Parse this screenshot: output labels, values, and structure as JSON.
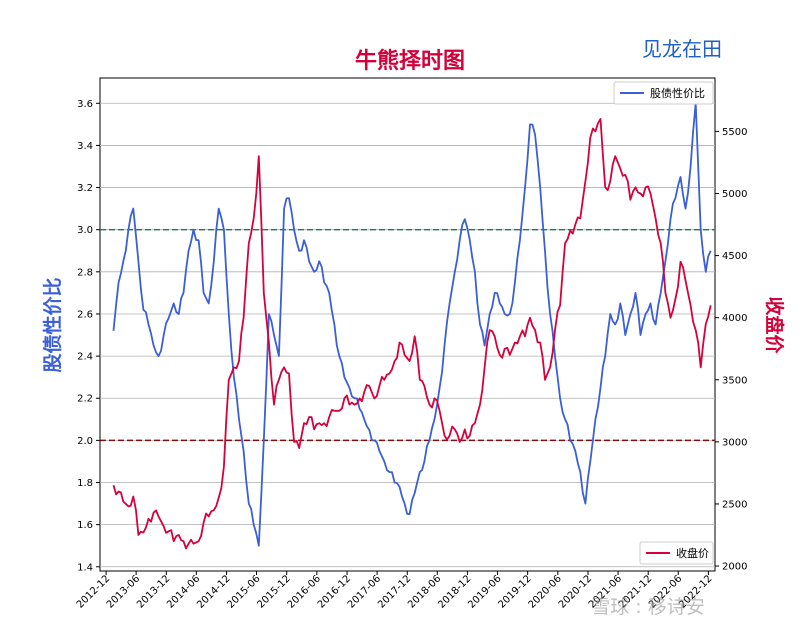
{
  "chart_data": {
    "type": "line",
    "title": "牛熊择时图",
    "brand": "见龙在田",
    "watermark": "雪球 : 移诗安",
    "xlabel": "",
    "ylabel": "股债性价比",
    "y2label": "收盘价",
    "ylim": [
      1.38,
      3.72
    ],
    "y2lim": [
      1960,
      5930
    ],
    "yticks": [
      1.4,
      1.6,
      1.8,
      2.0,
      2.2,
      2.4,
      2.6,
      2.8,
      3.0,
      3.2,
      3.4,
      3.6
    ],
    "y2ticks": [
      2000,
      2500,
      3000,
      3500,
      4000,
      4500,
      5000,
      5500
    ],
    "xticks": [
      "2012-12",
      "2013-06",
      "2013-12",
      "2014-06",
      "2014-12",
      "2015-06",
      "2015-12",
      "2016-06",
      "2016-12",
      "2017-06",
      "2017-12",
      "2018-06",
      "2018-12",
      "2019-06",
      "2019-12",
      "2020-06",
      "2020-12",
      "2021-06",
      "2021-12",
      "2022-06",
      "2022-12"
    ],
    "grid": true,
    "reference_lines": [
      {
        "value": 3.0,
        "axis": "left",
        "color": "#1a7a60",
        "style": "dashed"
      },
      {
        "value": 2.0,
        "axis": "left",
        "color": "#7a1010",
        "style": "dashed"
      }
    ],
    "series": [
      {
        "name": "股债性价比",
        "axis": "left",
        "color": "#3a5fd6",
        "x": [
          "2013-01",
          "2013-02",
          "2013-03",
          "2013-04",
          "2013-05",
          "2013-06",
          "2013-07",
          "2013-08",
          "2013-09",
          "2013-10",
          "2013-11",
          "2013-12",
          "2014-01",
          "2014-02",
          "2014-03",
          "2014-04",
          "2014-05",
          "2014-06",
          "2014-07",
          "2014-08",
          "2014-09",
          "2014-10",
          "2014-11",
          "2014-12",
          "2015-01",
          "2015-02",
          "2015-03",
          "2015-04",
          "2015-05",
          "2015-06",
          "2015-07",
          "2015-08",
          "2015-09",
          "2015-10",
          "2015-11",
          "2015-12",
          "2016-01",
          "2016-02",
          "2016-03",
          "2016-04",
          "2016-05",
          "2016-06",
          "2016-07",
          "2016-08",
          "2016-09",
          "2016-10",
          "2016-11",
          "2016-12",
          "2017-01",
          "2017-02",
          "2017-03",
          "2017-04",
          "2017-05",
          "2017-06",
          "2017-07",
          "2017-08",
          "2017-09",
          "2017-10",
          "2017-11",
          "2017-12",
          "2018-01",
          "2018-02",
          "2018-03",
          "2018-04",
          "2018-05",
          "2018-06",
          "2018-07",
          "2018-08",
          "2018-09",
          "2018-10",
          "2018-11",
          "2018-12",
          "2019-01",
          "2019-02",
          "2019-03",
          "2019-04",
          "2019-05",
          "2019-06",
          "2019-07",
          "2019-08",
          "2019-09",
          "2019-10",
          "2019-11",
          "2019-12",
          "2020-01",
          "2020-02",
          "2020-03",
          "2020-04",
          "2020-05",
          "2020-06",
          "2020-07",
          "2020-08",
          "2020-09",
          "2020-10",
          "2020-11",
          "2020-12",
          "2021-01",
          "2021-02",
          "2021-03",
          "2021-04",
          "2021-05",
          "2021-06",
          "2021-07",
          "2021-08",
          "2021-09",
          "2021-10",
          "2021-11",
          "2021-12",
          "2022-01",
          "2022-02",
          "2022-03",
          "2022-04",
          "2022-05",
          "2022-06",
          "2022-07",
          "2022-08",
          "2022-09",
          "2022-10",
          "2022-11",
          "2022-12"
        ],
        "values": [
          2.52,
          2.75,
          2.85,
          3.0,
          3.1,
          2.85,
          2.62,
          2.55,
          2.45,
          2.4,
          2.5,
          2.58,
          2.65,
          2.6,
          2.7,
          2.9,
          3.0,
          2.95,
          2.7,
          2.65,
          2.85,
          3.1,
          3.0,
          2.6,
          2.3,
          2.1,
          1.95,
          1.7,
          1.6,
          1.5,
          2.0,
          2.6,
          2.5,
          2.4,
          3.1,
          3.15,
          3.0,
          2.9,
          2.95,
          2.85,
          2.8,
          2.85,
          2.75,
          2.7,
          2.55,
          2.4,
          2.3,
          2.25,
          2.2,
          2.15,
          2.1,
          2.05,
          2.0,
          1.95,
          1.9,
          1.85,
          1.8,
          1.78,
          1.7,
          1.65,
          1.75,
          1.85,
          1.9,
          2.0,
          2.1,
          2.25,
          2.45,
          2.65,
          2.8,
          2.95,
          3.05,
          2.95,
          2.8,
          2.55,
          2.45,
          2.6,
          2.7,
          2.65,
          2.6,
          2.6,
          2.75,
          2.95,
          3.2,
          3.5,
          3.45,
          3.2,
          2.9,
          2.6,
          2.4,
          2.2,
          2.1,
          2.0,
          1.95,
          1.85,
          1.7,
          1.9,
          2.1,
          2.25,
          2.4,
          2.6,
          2.55,
          2.65,
          2.5,
          2.6,
          2.7,
          2.5,
          2.6,
          2.65,
          2.55,
          2.7,
          2.85,
          3.05,
          3.15,
          3.25,
          3.1,
          3.3,
          3.6,
          3.0,
          2.8,
          2.9
        ]
      },
      {
        "name": "收盘价",
        "axis": "right",
        "color": "#d8003a",
        "x": [
          "2013-01",
          "2013-02",
          "2013-03",
          "2013-04",
          "2013-05",
          "2013-06",
          "2013-07",
          "2013-08",
          "2013-09",
          "2013-10",
          "2013-11",
          "2013-12",
          "2014-01",
          "2014-02",
          "2014-03",
          "2014-04",
          "2014-05",
          "2014-06",
          "2014-07",
          "2014-08",
          "2014-09",
          "2014-10",
          "2014-11",
          "2014-12",
          "2015-01",
          "2015-02",
          "2015-03",
          "2015-04",
          "2015-05",
          "2015-06",
          "2015-07",
          "2015-08",
          "2015-09",
          "2015-10",
          "2015-11",
          "2015-12",
          "2016-01",
          "2016-02",
          "2016-03",
          "2016-04",
          "2016-05",
          "2016-06",
          "2016-07",
          "2016-08",
          "2016-09",
          "2016-10",
          "2016-11",
          "2016-12",
          "2017-01",
          "2017-02",
          "2017-03",
          "2017-04",
          "2017-05",
          "2017-06",
          "2017-07",
          "2017-08",
          "2017-09",
          "2017-10",
          "2017-11",
          "2017-12",
          "2018-01",
          "2018-02",
          "2018-03",
          "2018-04",
          "2018-05",
          "2018-06",
          "2018-07",
          "2018-08",
          "2018-09",
          "2018-10",
          "2018-11",
          "2018-12",
          "2019-01",
          "2019-02",
          "2019-03",
          "2019-04",
          "2019-05",
          "2019-06",
          "2019-07",
          "2019-08",
          "2019-09",
          "2019-10",
          "2019-11",
          "2019-12",
          "2020-01",
          "2020-02",
          "2020-03",
          "2020-04",
          "2020-05",
          "2020-06",
          "2020-07",
          "2020-08",
          "2020-09",
          "2020-10",
          "2020-11",
          "2020-12",
          "2021-01",
          "2021-02",
          "2021-03",
          "2021-04",
          "2021-05",
          "2021-06",
          "2021-07",
          "2021-08",
          "2021-09",
          "2021-10",
          "2021-11",
          "2021-12",
          "2022-01",
          "2022-02",
          "2022-03",
          "2022-04",
          "2022-05",
          "2022-06",
          "2022-07",
          "2022-08",
          "2022-09",
          "2022-10",
          "2022-11",
          "2022-12"
        ],
        "values": [
          2650,
          2600,
          2520,
          2480,
          2560,
          2250,
          2270,
          2380,
          2430,
          2400,
          2320,
          2280,
          2200,
          2250,
          2200,
          2180,
          2180,
          2200,
          2350,
          2400,
          2450,
          2550,
          2800,
          3500,
          3600,
          3650,
          4000,
          4600,
          4800,
          5300,
          4200,
          3800,
          3300,
          3500,
          3600,
          3550,
          3000,
          2950,
          3150,
          3200,
          3100,
          3150,
          3150,
          3200,
          3250,
          3250,
          3350,
          3300,
          3300,
          3350,
          3400,
          3450,
          3350,
          3450,
          3500,
          3550,
          3650,
          3800,
          3700,
          3650,
          3850,
          3500,
          3450,
          3300,
          3350,
          3250,
          3050,
          3050,
          3100,
          3000,
          3100,
          3050,
          3150,
          3300,
          3600,
          3900,
          3850,
          3700,
          3750,
          3700,
          3800,
          3850,
          3850,
          4000,
          3900,
          3800,
          3500,
          3600,
          3900,
          4100,
          4600,
          4700,
          4750,
          4800,
          5100,
          5450,
          5500,
          5600,
          5050,
          5100,
          5300,
          5200,
          5150,
          4950,
          5050,
          5000,
          5050,
          5000,
          4800,
          4600,
          4200,
          4000,
          4150,
          4450,
          4300,
          4100,
          3900,
          3600,
          3950,
          4100
        ]
      }
    ],
    "legends": [
      {
        "label": "股债性价比",
        "placement": "top-right"
      },
      {
        "label": "收盘价",
        "placement": "bottom-right"
      }
    ]
  }
}
